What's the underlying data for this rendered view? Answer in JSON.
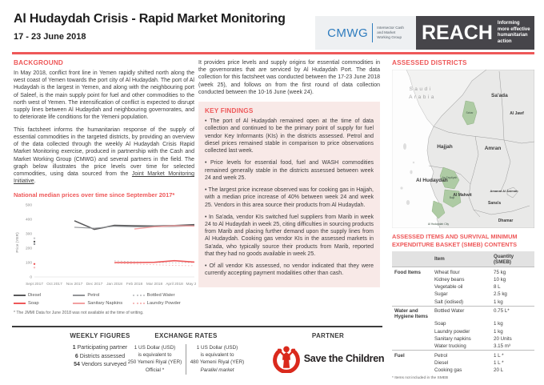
{
  "header": {
    "title": "Al Hudaydah Crisis - Rapid Market Monitoring",
    "date_range": "17 - 23 June 2018",
    "cmwg": {
      "abbr": "CMWG",
      "lines": [
        "Intersector Cash",
        "and Market",
        "Working Group"
      ]
    },
    "reach": {
      "name": "REACH",
      "lines": [
        "Informing",
        "more effective",
        "humanitarian action"
      ]
    }
  },
  "background": {
    "heading": "BACKGROUND",
    "paragraphs": [
      {
        "text": "In May 2018, conflict front line in Yemen rapidly shifted north along the west coast of Yemen towards the port city of Al Hudaydah. The port of Al Hudaydah is the largest in Yemen, and along with the neighbouring port of Saleef, is the main supply point for fuel and other commodities to the north west of Yemen. The intensification of conflict is expected to disrupt supply lines between Al Hudaydah and neighbouring governorates, and to deteriorate life conditions for the Yemeni population."
      },
      {
        "text": "This factsheet informs the humanitarian response of the supply of essential commodities in the targeted districts, by providing an overview of the data collected through the weekly Al Hudaydah Crisis Rapid Market Monitoring exercise, produced in partnership with the Cash and Market Working Group (CMWG) and several partners in the field. The graph below illustrates the price levels over time for selected commodities, using data sourced from the ",
        "link": "Joint Market Monitoring Initiative",
        "suffix": "."
      }
    ]
  },
  "intro_paragraph": "It provides price levels and supply origins for essential commodities in the governorates that are serviced by Al Hudaydah Port. The data collection for this factsheet was conducted between the 17-23 June 2018 (week 25), and follows on from the first round of data collection conducted between the 10-16 June (week 24).",
  "key_findings": {
    "heading": "KEY FINDINGS",
    "bullets": [
      "The port of Al Hudaydah remained open at the time of data collection and continued to be the primary point of supply for fuel vendor Key Informants (KIs) in the districts assessed. Petrol and diesel prices remained stable in comparison to price observations collected last week.",
      "Price levels for essential food, fuel and WASH commodities remained generally stable in the districts assessed between week 24 and week 25.",
      "The largest price increase observed was for cooking gas in Hajjah, with a median price increase of 40% between week 24 and week 25. Vendors in this area source their products from Al Hudaydah.",
      "In Sa'ada, vendor KIs switched fuel suppliers from Marib in week 24 to Al Hudaydah in week 25, citing difficulties in sourcing products from Marib and placing further demand upon the supply lines from Al Hudaydah. Cooking gas vendor KIs in the assessed markets in Sa'ada, who typically source their products from Marib, reported that they had no goods available in week 25.",
      "Of all vendor KIs assessed, no vendor indicated that they were currently accepting payment modalities other than cash."
    ]
  },
  "chart_data": {
    "type": "line",
    "title": "National median prices over time since September 2017*",
    "ylabel": "Price (YER)",
    "ylim": [
      0,
      500
    ],
    "yticks": [
      0,
      100,
      200,
      300,
      400,
      500
    ],
    "x": [
      "Sept 2017",
      "Oct 2017",
      "Nov 2017",
      "Dec 2017",
      "Jan 2018",
      "Feb 2018",
      "Mar 2018",
      "April 2018",
      "May 2018"
    ],
    "series": [
      {
        "name": "Diesel",
        "color": "#58585a",
        "width": 1.6,
        "dash": false,
        "values": [
          245,
          null,
          390,
          330,
          358,
          355,
          353,
          357,
          363
        ]
      },
      {
        "name": "Petrol",
        "color": "#939598",
        "width": 1.1,
        "dash": false,
        "values": [
          228,
          null,
          345,
          338,
          352,
          348,
          348,
          350,
          355
        ]
      },
      {
        "name": "Bottled Water",
        "color": "#c7c8ca",
        "width": 1,
        "dash": true,
        "values": [
          268,
          null,
          null,
          null,
          112,
          105,
          100,
          98,
          100
        ]
      },
      {
        "name": "Soap",
        "color": "#ee5859",
        "width": 1.6,
        "dash": false,
        "values": [
          90,
          null,
          null,
          null,
          100,
          100,
          102,
          113,
          103
        ]
      },
      {
        "name": "Sanitary Napkins",
        "color": "#f2a0a1",
        "width": 1.4,
        "dash": false,
        "values": [
          null,
          null,
          null,
          null,
          null,
          333,
          348,
          356,
          353
        ]
      },
      {
        "name": "Laundry Powder",
        "color": "#f6bcbc",
        "width": 1,
        "dash": true,
        "values": [
          65,
          null,
          null,
          null,
          95,
          90,
          85,
          80,
          78
        ]
      }
    ],
    "footnote": "* The JMMI Data for June 2018 was not available at the time of writing."
  },
  "map": {
    "heading": "ASSESSED DISTRICTS",
    "neighbor": [
      "Saudi",
      "Arabia"
    ],
    "governorates": {
      "saada": "Sa'ada",
      "al_jawf": "Al Jawf",
      "hajjah": "Hajjah",
      "amran": "Amran",
      "al_hudaydah": "Al Hudaydah",
      "al_mahwit": "Al Mahwit",
      "amanat_al_asimah": "Amanat Al Asimah",
      "sanaa": "Sana'a",
      "dhamar": "Dhamar"
    },
    "districts": {
      "sahar": "Sahar",
      "az_zaydiyah": "Az Zaydiyah",
      "bajil": "Bajil",
      "al_hudaydah_city": "Al Hudaydah City"
    },
    "highlight_color": "#aecba4"
  },
  "smeb_table": {
    "heading": "ASSESSED ITEMS AND SURVIVAL MINIMUM EXPENDITURE BASKET (SMEB) CONTENTS",
    "columns": [
      "",
      "Item",
      "Quantity (SMEB)"
    ],
    "groups": [
      {
        "category": "Food Items",
        "rows": [
          [
            "Wheat flour",
            "75 kg"
          ],
          [
            "Kidney beans",
            "10 kg"
          ],
          [
            "Vegetable oil",
            "8 L"
          ],
          [
            "Sugar",
            "2.5 kg"
          ],
          [
            "Salt (iodised)",
            "1 kg"
          ]
        ]
      },
      {
        "category": "Water and Hygiene Items",
        "rows": [
          [
            "Bottled Water",
            "0.75 L*"
          ],
          [
            "Soap",
            "1 kg"
          ],
          [
            "Laundry powder",
            "1 kg"
          ],
          [
            "Sanitary napkins",
            "20 Units"
          ],
          [
            "Water trucking",
            "3.15 m³"
          ]
        ]
      },
      {
        "category": "Fuel",
        "rows": [
          [
            "Petrol",
            "1 L *"
          ],
          [
            "Diesel",
            "1 L *"
          ],
          [
            "Cooking gas",
            "20 L"
          ]
        ]
      }
    ],
    "footnote": "* Items not included in the SMEB"
  },
  "weekly_figures": {
    "heading": "WEEKLY FIGURES",
    "items": [
      {
        "value": "1",
        "label": "Participating partner"
      },
      {
        "value": "6",
        "label": "Districts assessed"
      },
      {
        "value": "54",
        "label": "Vendors surveyed"
      }
    ]
  },
  "exchange_rates": {
    "heading": "EXCHANGE RATES",
    "rates": [
      {
        "lines": [
          "1 US Dollar (USD)",
          "is equivalent to",
          "250 Yemeni Riyal (YER)"
        ],
        "note": "Official *"
      },
      {
        "lines": [
          "1 US Dollar (USD)",
          "is equivalent to",
          "480 Yemeni Riyal (YER)"
        ],
        "note": "Parallel market"
      }
    ]
  },
  "partner": {
    "heading": "PARTNER",
    "name": "Save the Children"
  },
  "colors": {
    "accent_red": "#ee5859",
    "pink_bg": "#f8e9e7",
    "reach_dark": "#46454a",
    "cmwg_blue": "#2e7cbe",
    "map_green": "#aecba4",
    "stc_red": "#da291c"
  }
}
